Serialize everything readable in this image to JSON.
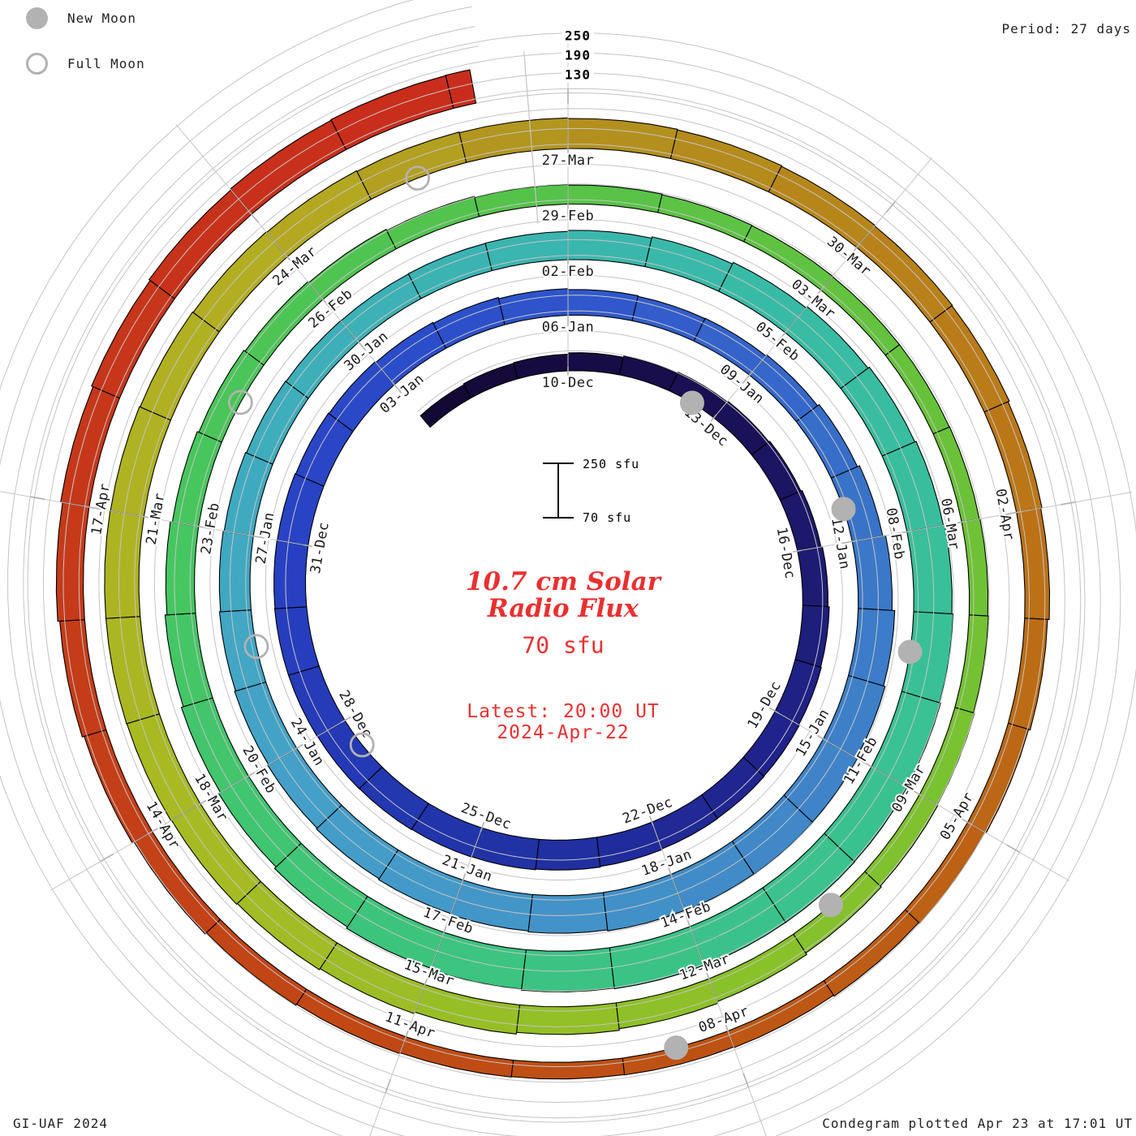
{
  "legend": {
    "new_moon": "New Moon",
    "full_moon": "Full Moon"
  },
  "period_label": "Period: 27 days",
  "credit": "GI-UAF 2024",
  "footer": "Condegram plotted Apr 23 at 17:01 UT",
  "center": {
    "title_line1": "10.7 cm Solar",
    "title_line2": "Radio Flux",
    "unit": "70 sfu",
    "latest_line1": "Latest: 20:00 UT",
    "latest_line2": "2024-Apr-22"
  },
  "scale_bar": {
    "top": "250 sfu",
    "bottom": "70 sfu"
  },
  "radial_axis": {
    "labels": [
      "250",
      "190",
      "130"
    ]
  },
  "chart_data": {
    "type": "spiral-bar",
    "title": "10.7 cm Solar Radio Flux (Condegram)",
    "units": "sfu",
    "period_days": 27,
    "start_date": "2023-12-07",
    "end_date": "2024-04-22",
    "latest_observation": "2024-Apr-22 20:00 UT",
    "flux_base_sfu": 70,
    "flux_gridlines_sfu": [
      130,
      190,
      250
    ],
    "flux_scale_sfu": [
      70,
      250
    ],
    "date_labels": [
      "10-Dec",
      "13-Dec",
      "16-Dec",
      "19-Dec",
      "22-Dec",
      "25-Dec",
      "28-Dec",
      "31-Dec",
      "03-Jan",
      "06-Jan",
      "09-Jan",
      "12-Jan",
      "15-Jan",
      "18-Jan",
      "21-Jan",
      "24-Jan",
      "27-Jan",
      "30-Jan",
      "02-Feb",
      "05-Feb",
      "08-Feb",
      "11-Feb",
      "14-Feb",
      "17-Feb",
      "20-Feb",
      "23-Feb",
      "26-Feb",
      "29-Feb",
      "03-Mar",
      "06-Mar",
      "09-Mar",
      "12-Mar",
      "15-Mar",
      "18-Mar",
      "21-Mar",
      "24-Mar",
      "27-Mar",
      "30-Mar",
      "02-Apr",
      "05-Apr",
      "08-Apr",
      "11-Apr",
      "14-Apr",
      "17-Apr"
    ],
    "flux_sfu": [
      115,
      118,
      120,
      124,
      128,
      132,
      135,
      138,
      142,
      146,
      150,
      152,
      154,
      155,
      156,
      158,
      160,
      162,
      163,
      164,
      165,
      166,
      166,
      165,
      164,
      162,
      160,
      157,
      154,
      150,
      147,
      145,
      146,
      150,
      156,
      163,
      172,
      180,
      185,
      188,
      189,
      188,
      186,
      183,
      180,
      177,
      174,
      171,
      168,
      165,
      162,
      159,
      156,
      154,
      153,
      154,
      155,
      158,
      162,
      167,
      172,
      177,
      181,
      185,
      189,
      192,
      194,
      195,
      195,
      194,
      192,
      189,
      185,
      180,
      174,
      168,
      162,
      156,
      150,
      145,
      140,
      136,
      132,
      129,
      127,
      125,
      124,
      123,
      123,
      124,
      126,
      128,
      131,
      134,
      138,
      143,
      148,
      153,
      158,
      163,
      167,
      170,
      172,
      173,
      173,
      172,
      170,
      168,
      166,
      164,
      162,
      160,
      158,
      156,
      154,
      152,
      148,
      144,
      139,
      134,
      130,
      126,
      123,
      121,
      120,
      121,
      124,
      128,
      133,
      139,
      145,
      151,
      157,
      162,
      166,
      169,
      171,
      172
    ],
    "new_moon_dates": [
      "2023-12-12",
      "2024-01-11",
      "2024-02-09",
      "2024-03-10",
      "2024-04-08"
    ],
    "full_moon_dates": [
      "2023-12-27",
      "2024-01-25",
      "2024-02-24",
      "2024-03-25"
    ],
    "colormap_stops": [
      [
        -1,
        "#130831"
      ],
      [
        5,
        "#1a1055"
      ],
      [
        11,
        "#1f2288"
      ],
      [
        17,
        "#2133a8"
      ],
      [
        23,
        "#2841c4"
      ],
      [
        29,
        "#2f55cc"
      ],
      [
        35,
        "#3a76c8"
      ],
      [
        41,
        "#428ec8"
      ],
      [
        47,
        "#44a2c8"
      ],
      [
        53,
        "#3cb0b8"
      ],
      [
        59,
        "#38bca4"
      ],
      [
        65,
        "#3ac192"
      ],
      [
        71,
        "#3cc47e"
      ],
      [
        77,
        "#46c65e"
      ],
      [
        83,
        "#56c348"
      ],
      [
        89,
        "#6cc236"
      ],
      [
        95,
        "#8cc128"
      ],
      [
        101,
        "#a8ba22"
      ],
      [
        107,
        "#b4ac22"
      ],
      [
        110,
        "#b2921e"
      ],
      [
        113,
        "#b8841a"
      ],
      [
        116,
        "#bc7416"
      ],
      [
        122,
        "#bd5413"
      ],
      [
        128,
        "#c44017"
      ],
      [
        136,
        "#c92c1c"
      ]
    ],
    "colors": {
      "accent_red": "#e93030",
      "grid_gray": "#c0c0c0",
      "moon_gray": "#b2b2b2",
      "bar_outline": "#000000"
    }
  }
}
